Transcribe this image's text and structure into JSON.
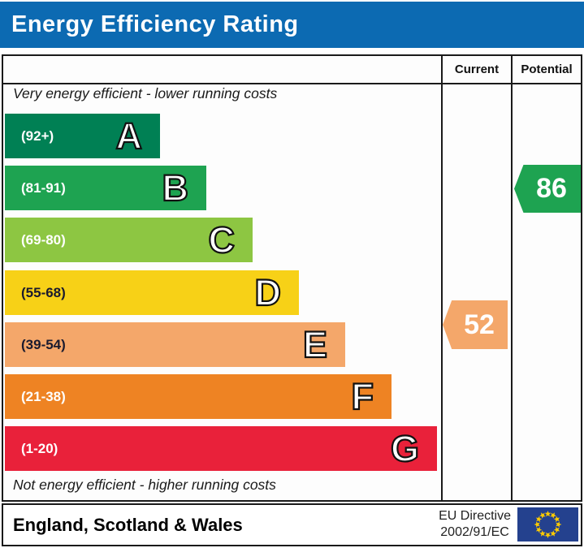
{
  "title": "Energy Efficiency Rating",
  "columns": {
    "current": "Current",
    "potential": "Potential"
  },
  "notes": {
    "top": "Very energy efficient - lower running costs",
    "bottom": "Not energy efficient - higher running costs"
  },
  "chart_data": {
    "type": "bar",
    "subtype": "epc-energy-efficiency-bands",
    "title": "Energy Efficiency Rating",
    "bands": [
      {
        "letter": "A",
        "range": "(92+)",
        "min": 92,
        "max": 100,
        "color": "#008054",
        "range_color": "#ffffff"
      },
      {
        "letter": "B",
        "range": "(81-91)",
        "min": 81,
        "max": 91,
        "color": "#1ea351",
        "range_color": "#ffffff"
      },
      {
        "letter": "C",
        "range": "(69-80)",
        "min": 69,
        "max": 80,
        "color": "#8dc642",
        "range_color": "#ffffff"
      },
      {
        "letter": "D",
        "range": "(55-68)",
        "min": 55,
        "max": 68,
        "color": "#f7d117",
        "range_color": "#1a1a2e"
      },
      {
        "letter": "E",
        "range": "(39-54)",
        "min": 39,
        "max": 54,
        "color": "#f4a76a",
        "range_color": "#1a1a2e"
      },
      {
        "letter": "F",
        "range": "(21-38)",
        "min": 21,
        "max": 38,
        "color": "#ee8323",
        "range_color": "#ffffff"
      },
      {
        "letter": "G",
        "range": "(1-20)",
        "min": 1,
        "max": 20,
        "color": "#e9213a",
        "range_color": "#ffffff"
      }
    ],
    "current": {
      "value": 52,
      "band": "E",
      "color": "#f4a76a"
    },
    "potential": {
      "value": 86,
      "band": "B",
      "color": "#1ea351"
    }
  },
  "footer": {
    "region": "England, Scotland & Wales",
    "directive_line1": "EU Directive",
    "directive_line2": "2002/91/EC"
  },
  "colors": {
    "title_bar": "#0c6ab2",
    "title_text": "#ffffff",
    "eu_flag_bg": "#24418e",
    "eu_flag_stars": "#ffcc00"
  }
}
